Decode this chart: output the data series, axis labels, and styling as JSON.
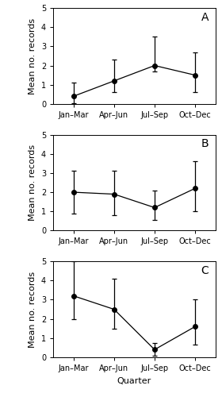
{
  "panels": [
    {
      "label": "A",
      "x": [
        1,
        2,
        3,
        4
      ],
      "means": [
        0.4,
        1.2,
        2.0,
        1.5
      ],
      "ci_low": [
        0.05,
        0.6,
        1.7,
        0.6
      ],
      "ci_high": [
        1.1,
        2.3,
        3.5,
        2.7
      ]
    },
    {
      "label": "B",
      "x": [
        1,
        2,
        3,
        4
      ],
      "means": [
        2.0,
        1.9,
        1.2,
        2.2
      ],
      "ci_low": [
        0.9,
        0.8,
        0.55,
        1.0
      ],
      "ci_high": [
        3.1,
        3.1,
        2.1,
        3.6
      ]
    },
    {
      "label": "C",
      "x": [
        1,
        2,
        3,
        4
      ],
      "means": [
        3.2,
        2.5,
        0.4,
        1.6
      ],
      "ci_low": [
        2.0,
        1.5,
        0.1,
        0.65
      ],
      "ci_high": [
        5.0,
        4.1,
        0.75,
        3.0
      ]
    }
  ],
  "xlabels": [
    "Jan–Mar",
    "Apr–Jun",
    "Jul–Sep",
    "Oct–Dec"
  ],
  "ylabel": "Mean no. records",
  "xlabel": "Quarter",
  "ylim": [
    0,
    5
  ],
  "yticks": [
    0,
    1,
    2,
    3,
    4,
    5
  ],
  "bg_color": "#ffffff",
  "line_color": "black",
  "marker_color": "black",
  "marker_size": 4,
  "line_width": 0.9,
  "capsize": 2,
  "tick_fontsize": 7,
  "label_fontsize": 8,
  "panel_label_fontsize": 10
}
